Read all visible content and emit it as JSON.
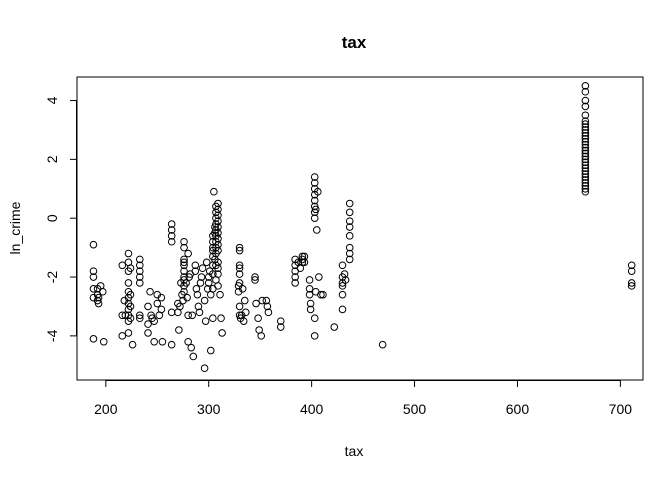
{
  "chart_data": {
    "type": "scatter",
    "title": "tax",
    "xlabel": "tax",
    "ylabel": "ln_crime",
    "xlim": [
      172,
      722
    ],
    "ylim": [
      -5.5,
      4.8
    ],
    "xticks": [
      200,
      300,
      400,
      500,
      600,
      700
    ],
    "yticks": [
      -4,
      -2,
      0,
      2,
      4
    ],
    "grid": false,
    "marker": "open-circle",
    "points": [
      [
        188,
        -0.9
      ],
      [
        188,
        -1.8
      ],
      [
        188,
        -2.0
      ],
      [
        188,
        -2.4
      ],
      [
        188,
        -2.7
      ],
      [
        188,
        -4.1
      ],
      [
        192,
        -2.4
      ],
      [
        192,
        -2.6
      ],
      [
        192,
        -2.8
      ],
      [
        193,
        -2.7
      ],
      [
        193,
        -2.9
      ],
      [
        195,
        -2.3
      ],
      [
        197,
        -2.5
      ],
      [
        198,
        -4.2
      ],
      [
        216,
        -1.6
      ],
      [
        216,
        -3.3
      ],
      [
        216,
        -4.0
      ],
      [
        218,
        -2.8
      ],
      [
        219,
        -3.3
      ],
      [
        222,
        -1.2
      ],
      [
        222,
        -1.5
      ],
      [
        222,
        -1.8
      ],
      [
        222,
        -2.2
      ],
      [
        222,
        -2.5
      ],
      [
        222,
        -2.7
      ],
      [
        222,
        -2.9
      ],
      [
        222,
        -3.1
      ],
      [
        222,
        -3.3
      ],
      [
        222,
        -3.5
      ],
      [
        222,
        -3.9
      ],
      [
        224,
        -1.7
      ],
      [
        224,
        -2.6
      ],
      [
        224,
        -3.0
      ],
      [
        224,
        -3.4
      ],
      [
        226,
        -4.3
      ],
      [
        233,
        -1.4
      ],
      [
        233,
        -1.6
      ],
      [
        233,
        -1.8
      ],
      [
        233,
        -2.0
      ],
      [
        233,
        -2.2
      ],
      [
        233,
        -3.3
      ],
      [
        233,
        -3.4
      ],
      [
        241,
        -3.0
      ],
      [
        241,
        -3.6
      ],
      [
        241,
        -3.9
      ],
      [
        243,
        -2.5
      ],
      [
        244,
        -3.3
      ],
      [
        245,
        -3.4
      ],
      [
        247,
        -3.5
      ],
      [
        247,
        -4.2
      ],
      [
        250,
        -2.6
      ],
      [
        250,
        -2.9
      ],
      [
        252,
        -3.3
      ],
      [
        254,
        -2.7
      ],
      [
        254,
        -3.1
      ],
      [
        255,
        -4.2
      ],
      [
        264,
        -0.2
      ],
      [
        264,
        -0.4
      ],
      [
        264,
        -0.6
      ],
      [
        264,
        -0.8
      ],
      [
        264,
        -3.2
      ],
      [
        264,
        -4.3
      ],
      [
        270,
        -2.9
      ],
      [
        270,
        -3.2
      ],
      [
        271,
        -3.8
      ],
      [
        272,
        -3.0
      ],
      [
        273,
        -2.2
      ],
      [
        274,
        -2.6
      ],
      [
        275,
        -2.8
      ],
      [
        276,
        -0.8
      ],
      [
        276,
        -1.0
      ],
      [
        276,
        -1.4
      ],
      [
        276,
        -1.5
      ],
      [
        276,
        -1.6
      ],
      [
        276,
        -1.8
      ],
      [
        276,
        -2.0
      ],
      [
        276,
        -2.1
      ],
      [
        276,
        -2.3
      ],
      [
        276,
        -2.5
      ],
      [
        278,
        -2.2
      ],
      [
        279,
        -2.7
      ],
      [
        280,
        -1.2
      ],
      [
        280,
        -3.3
      ],
      [
        280,
        -4.2
      ],
      [
        281,
        -2.0
      ],
      [
        282,
        -1.9
      ],
      [
        283,
        -4.4
      ],
      [
        284,
        -3.3
      ],
      [
        285,
        -4.7
      ],
      [
        287,
        -1.6
      ],
      [
        287,
        -1.8
      ],
      [
        288,
        -2.4
      ],
      [
        289,
        -2.6
      ],
      [
        290,
        -3.0
      ],
      [
        291,
        -3.2
      ],
      [
        292,
        -2.2
      ],
      [
        293,
        -2.0
      ],
      [
        294,
        -1.7
      ],
      [
        296,
        -5.1
      ],
      [
        296,
        -2.8
      ],
      [
        297,
        -3.5
      ],
      [
        298,
        -1.5
      ],
      [
        299,
        -2.4
      ],
      [
        300,
        -2.0
      ],
      [
        300,
        -2.2
      ],
      [
        301,
        -1.8
      ],
      [
        302,
        -4.5
      ],
      [
        302,
        -2.6
      ],
      [
        304,
        -0.6
      ],
      [
        304,
        -0.8
      ],
      [
        304,
        -1.0
      ],
      [
        304,
        -1.1
      ],
      [
        304,
        -1.3
      ],
      [
        304,
        -1.6
      ],
      [
        304,
        -1.9
      ],
      [
        304,
        -2.4
      ],
      [
        304,
        -3.4
      ],
      [
        305,
        0.9
      ],
      [
        306,
        -0.3
      ],
      [
        306,
        -0.5
      ],
      [
        306,
        -1.4
      ],
      [
        307,
        -1.0
      ],
      [
        307,
        -2.1
      ],
      [
        307,
        0.0
      ],
      [
        307,
        0.2
      ],
      [
        307,
        0.4
      ],
      [
        307,
        -0.2
      ],
      [
        307,
        -0.4
      ],
      [
        307,
        -0.6
      ],
      [
        307,
        -0.8
      ],
      [
        307,
        -1.2
      ],
      [
        307,
        -1.6
      ],
      [
        309,
        0.5
      ],
      [
        309,
        0.3
      ],
      [
        309,
        0.1
      ],
      [
        309,
        -0.1
      ],
      [
        309,
        -0.3
      ],
      [
        309,
        -0.5
      ],
      [
        309,
        -0.7
      ],
      [
        309,
        -0.9
      ],
      [
        309,
        -1.1
      ],
      [
        309,
        -1.5
      ],
      [
        309,
        -1.7
      ],
      [
        309,
        -1.9
      ],
      [
        309,
        -2.3
      ],
      [
        311,
        -2.6
      ],
      [
        312,
        -3.4
      ],
      [
        313,
        -3.9
      ],
      [
        329,
        -2.3
      ],
      [
        329,
        -2.5
      ],
      [
        330,
        -1.0
      ],
      [
        330,
        -1.1
      ],
      [
        330,
        -1.6
      ],
      [
        330,
        -1.7
      ],
      [
        330,
        -1.9
      ],
      [
        330,
        -2.2
      ],
      [
        330,
        -3.0
      ],
      [
        330,
        -3.3
      ],
      [
        331,
        -3.4
      ],
      [
        332,
        -3.3
      ],
      [
        333,
        -2.4
      ],
      [
        334,
        -3.5
      ],
      [
        335,
        -2.8
      ],
      [
        336,
        -3.2
      ],
      [
        345,
        -2.0
      ],
      [
        345,
        -2.1
      ],
      [
        346,
        -2.9
      ],
      [
        348,
        -3.4
      ],
      [
        349,
        -3.8
      ],
      [
        351,
        -4.0
      ],
      [
        352,
        -2.8
      ],
      [
        356,
        -2.8
      ],
      [
        357,
        -3.0
      ],
      [
        358,
        -3.2
      ],
      [
        370,
        -3.5
      ],
      [
        370,
        -3.7
      ],
      [
        384,
        -1.4
      ],
      [
        384,
        -1.6
      ],
      [
        384,
        -1.8
      ],
      [
        384,
        -2.0
      ],
      [
        384,
        -2.2
      ],
      [
        387,
        -1.5
      ],
      [
        389,
        -1.7
      ],
      [
        391,
        -1.3
      ],
      [
        391,
        -1.4
      ],
      [
        391,
        -1.5
      ],
      [
        393,
        -1.3
      ],
      [
        393,
        -1.5
      ],
      [
        398,
        -2.1
      ],
      [
        398,
        -2.4
      ],
      [
        398,
        -2.6
      ],
      [
        399,
        -2.9
      ],
      [
        399,
        -3.1
      ],
      [
        403,
        1.4
      ],
      [
        403,
        1.2
      ],
      [
        403,
        1.0
      ],
      [
        403,
        0.8
      ],
      [
        403,
        0.6
      ],
      [
        403,
        0.4
      ],
      [
        403,
        0.2
      ],
      [
        403,
        0.0
      ],
      [
        403,
        -3.4
      ],
      [
        403,
        -4.0
      ],
      [
        404,
        0.3
      ],
      [
        404,
        -2.5
      ],
      [
        405,
        -0.4
      ],
      [
        406,
        0.9
      ],
      [
        407,
        -2.0
      ],
      [
        409,
        -2.6
      ],
      [
        411,
        -2.6
      ],
      [
        422,
        -3.7
      ],
      [
        430,
        -1.6
      ],
      [
        430,
        -2.0
      ],
      [
        430,
        -2.2
      ],
      [
        430,
        -2.6
      ],
      [
        430,
        -3.1
      ],
      [
        430,
        -2.3
      ],
      [
        432,
        -1.9
      ],
      [
        433,
        -2.1
      ],
      [
        437,
        0.5
      ],
      [
        437,
        0.2
      ],
      [
        437,
        -0.1
      ],
      [
        437,
        -0.3
      ],
      [
        437,
        -0.6
      ],
      [
        437,
        -1.0
      ],
      [
        437,
        -1.2
      ],
      [
        437,
        -1.4
      ],
      [
        469,
        -4.3
      ],
      [
        666,
        4.5
      ],
      [
        666,
        4.3
      ],
      [
        666,
        4.0
      ],
      [
        666,
        3.8
      ],
      [
        666,
        3.5
      ],
      [
        666,
        3.3
      ],
      [
        666,
        3.2
      ],
      [
        666,
        3.1
      ],
      [
        666,
        3.0
      ],
      [
        666,
        2.9
      ],
      [
        666,
        2.8
      ],
      [
        666,
        2.7
      ],
      [
        666,
        2.6
      ],
      [
        666,
        2.5
      ],
      [
        666,
        2.4
      ],
      [
        666,
        2.3
      ],
      [
        666,
        2.2
      ],
      [
        666,
        2.1
      ],
      [
        666,
        2.0
      ],
      [
        666,
        1.9
      ],
      [
        666,
        1.8
      ],
      [
        666,
        1.7
      ],
      [
        666,
        1.6
      ],
      [
        666,
        1.5
      ],
      [
        666,
        1.4
      ],
      [
        666,
        1.3
      ],
      [
        666,
        1.2
      ],
      [
        666,
        1.1
      ],
      [
        666,
        1.0
      ],
      [
        666,
        0.9
      ],
      [
        711,
        -1.6
      ],
      [
        711,
        -1.8
      ],
      [
        711,
        -2.2
      ],
      [
        711,
        -2.3
      ]
    ]
  }
}
